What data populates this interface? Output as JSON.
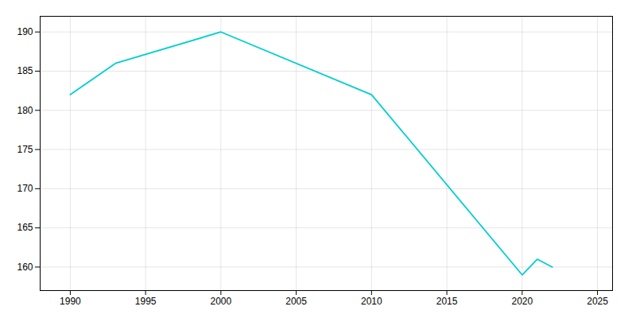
{
  "chart_data": {
    "type": "line",
    "x": [
      1990,
      1993,
      2000,
      2010,
      2020,
      2021,
      2022
    ],
    "values": [
      182,
      186,
      190,
      182,
      159,
      161,
      160
    ],
    "color": "#00CED1",
    "xlim": [
      1988,
      2026
    ],
    "ylim": [
      157,
      192
    ],
    "xticks": [
      1990,
      1995,
      2000,
      2005,
      2010,
      2015,
      2020,
      2025
    ],
    "yticks": [
      160,
      165,
      170,
      175,
      180,
      185,
      190
    ],
    "grid": true
  }
}
